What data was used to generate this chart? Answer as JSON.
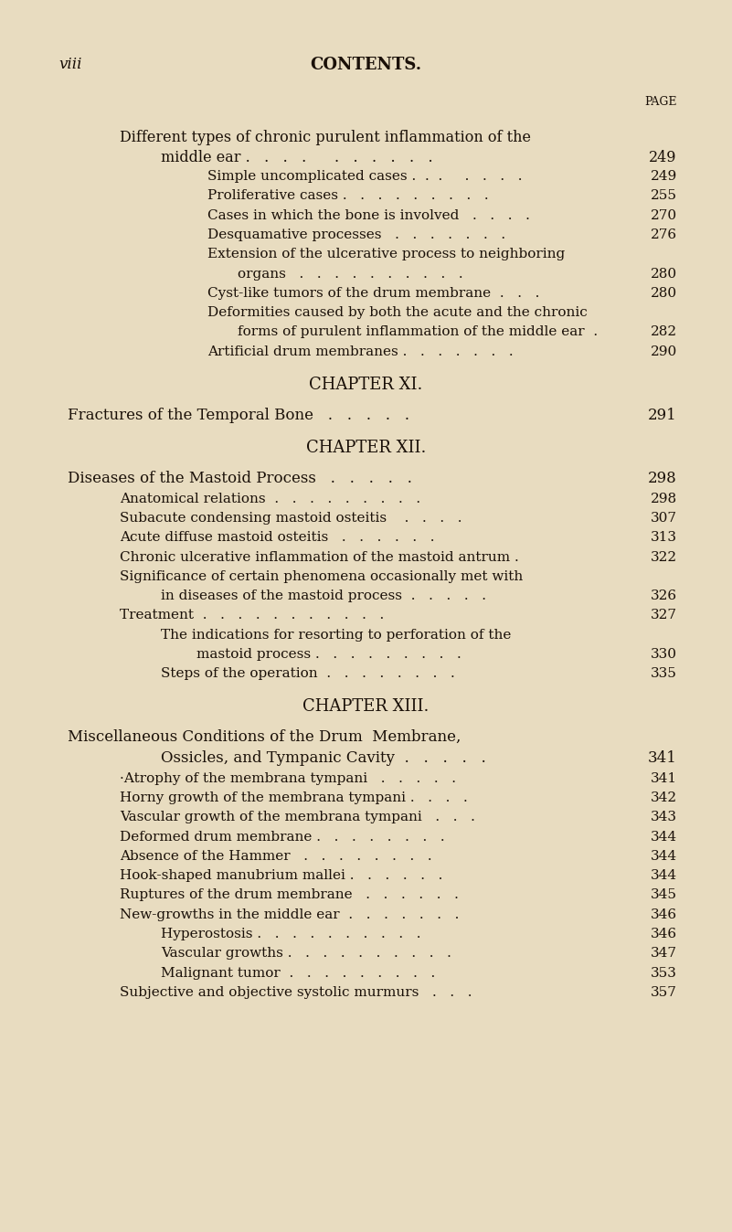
{
  "bg_color": "#e8dcc0",
  "text_color": "#1a1008",
  "page_header_left": "viii",
  "page_header_center": "CONTENTS.",
  "page_label": "PAGE",
  "figsize": [
    8.01,
    13.48
  ],
  "dpi": 100,
  "lines": [
    {
      "text": "Different types of chronic purulent inflammation of the",
      "indent": 0.13,
      "page": null,
      "style": "normal",
      "size": 11.5
    },
    {
      "text": "middle ear .   .   .   .      .   .   .   .   .   .",
      "indent": 0.2,
      "page": "249",
      "style": "normal",
      "size": 11.5
    },
    {
      "text": "Simple uncomplicated cases .  .  .     .   .   .   .",
      "indent": 0.28,
      "page": "249",
      "style": "normal",
      "size": 11.0
    },
    {
      "text": "Proliferative cases .   .   .   .   .   .   .   .   .",
      "indent": 0.28,
      "page": "255",
      "style": "normal",
      "size": 11.0
    },
    {
      "text": "Cases in which the bone is involved   .   .   .   .",
      "indent": 0.28,
      "page": "270",
      "style": "normal",
      "size": 11.0
    },
    {
      "text": "Desquamative processes   .   .   .   .   .   .   .",
      "indent": 0.28,
      "page": "276",
      "style": "normal",
      "size": 11.0
    },
    {
      "text": "Extension of the ulcerative process to neighboring",
      "indent": 0.28,
      "page": null,
      "style": "normal",
      "size": 11.0
    },
    {
      "text": "organs   .   .   .   .   .   .   .   .   .   .",
      "indent": 0.33,
      "page": "280",
      "style": "normal",
      "size": 11.0
    },
    {
      "text": "Cyst-like tumors of the drum membrane  .   .   .",
      "indent": 0.28,
      "page": "280",
      "style": "normal",
      "size": 11.0
    },
    {
      "text": "Deformities caused by both the acute and the chronic",
      "indent": 0.28,
      "page": null,
      "style": "normal",
      "size": 11.0
    },
    {
      "text": "forms of purulent inflammation of the middle ear  .",
      "indent": 0.33,
      "page": "282",
      "style": "normal",
      "size": 11.0
    },
    {
      "text": "Artificial drum membranes .   .   .   .   .   .   .",
      "indent": 0.28,
      "page": "290",
      "style": "normal",
      "size": 11.0
    },
    {
      "text": "",
      "indent": 0,
      "page": null,
      "style": "spacer",
      "size": 10
    },
    {
      "text": "CHAPTER XI.",
      "indent": 0.5,
      "page": null,
      "style": "chapter_title",
      "size": 13
    },
    {
      "text": "",
      "indent": 0,
      "page": null,
      "style": "spacer",
      "size": 7
    },
    {
      "text": "Fractures of the Temporal Bone   .   .   .   .   .",
      "indent": 0.04,
      "page": "291",
      "style": "sc",
      "size": 12
    },
    {
      "text": "",
      "indent": 0,
      "page": null,
      "style": "spacer",
      "size": 10
    },
    {
      "text": "CHAPTER XII.",
      "indent": 0.5,
      "page": null,
      "style": "chapter_title",
      "size": 13
    },
    {
      "text": "",
      "indent": 0,
      "page": null,
      "style": "spacer",
      "size": 7
    },
    {
      "text": "Diseases of the Mastoid Process   .   .   .   .   .",
      "indent": 0.04,
      "page": "298",
      "style": "sc",
      "size": 12
    },
    {
      "text": "Anatomical relations  .   .   .   .   .   .   .   .   .",
      "indent": 0.13,
      "page": "298",
      "style": "normal",
      "size": 11.0
    },
    {
      "text": "Subacute condensing mastoid osteitis    .   .   .   .",
      "indent": 0.13,
      "page": "307",
      "style": "normal",
      "size": 11.0
    },
    {
      "text": "Acute diffuse mastoid osteitis   .   .   .   .   .   .",
      "indent": 0.13,
      "page": "313",
      "style": "normal",
      "size": 11.0
    },
    {
      "text": "Chronic ulcerative inflammation of the mastoid antrum .",
      "indent": 0.13,
      "page": "322",
      "style": "normal",
      "size": 11.0
    },
    {
      "text": "Significance of certain phenomena occasionally met with",
      "indent": 0.13,
      "page": null,
      "style": "normal",
      "size": 11.0
    },
    {
      "text": "in diseases of the mastoid process  .   .   .   .   .",
      "indent": 0.2,
      "page": "326",
      "style": "normal",
      "size": 11.0
    },
    {
      "text": "Treatment  .   .   .   .   .   .   .   .   .   .   .",
      "indent": 0.13,
      "page": "327",
      "style": "normal",
      "size": 11.0
    },
    {
      "text": "The indications for resorting to perforation of the",
      "indent": 0.2,
      "page": null,
      "style": "normal",
      "size": 11.0
    },
    {
      "text": "mastoid process .   .   .   .   .   .   .   .   .",
      "indent": 0.26,
      "page": "330",
      "style": "normal",
      "size": 11.0
    },
    {
      "text": "Steps of the operation  .   .   .   .   .   .   .   .",
      "indent": 0.2,
      "page": "335",
      "style": "normal",
      "size": 11.0
    },
    {
      "text": "",
      "indent": 0,
      "page": null,
      "style": "spacer",
      "size": 10
    },
    {
      "text": "CHAPTER XIII.",
      "indent": 0.5,
      "page": null,
      "style": "chapter_title",
      "size": 13
    },
    {
      "text": "",
      "indent": 0,
      "page": null,
      "style": "spacer",
      "size": 7
    },
    {
      "text": "Miscellaneous Conditions of the Drum  Membrane,",
      "indent": 0.04,
      "page": null,
      "style": "sc",
      "size": 12
    },
    {
      "text": "Ossicles, and Tympanic Cavity  .   .   .   .   .",
      "indent": 0.2,
      "page": "341",
      "style": "sc_sub",
      "size": 12
    },
    {
      "text": "·Atrophy of the membrana tympani   .   .   .   .   .",
      "indent": 0.13,
      "page": "341",
      "style": "normal",
      "size": 11.0
    },
    {
      "text": "Horny growth of the membrana tympani .   .   .   .",
      "indent": 0.13,
      "page": "342",
      "style": "normal",
      "size": 11.0
    },
    {
      "text": "Vascular growth of the membrana tympani   .   .   .",
      "indent": 0.13,
      "page": "343",
      "style": "normal",
      "size": 11.0
    },
    {
      "text": "Deformed drum membrane .   .   .   .   .   .   .   .",
      "indent": 0.13,
      "page": "344",
      "style": "normal",
      "size": 11.0
    },
    {
      "text": "Absence of the Hammer   .   .   .   .   .   .   .   .",
      "indent": 0.13,
      "page": "344",
      "style": "normal",
      "size": 11.0
    },
    {
      "text": "Hook-shaped manubrium mallei .   .   .   .   .   .",
      "indent": 0.13,
      "page": "344",
      "style": "normal",
      "size": 11.0
    },
    {
      "text": "Ruptures of the drum membrane   .   .   .   .   .   .",
      "indent": 0.13,
      "page": "345",
      "style": "normal",
      "size": 11.0
    },
    {
      "text": "New-growths in the middle ear  .   .   .   .   .   .   .",
      "indent": 0.13,
      "page": "346",
      "style": "normal",
      "size": 11.0
    },
    {
      "text": "Hyperostosis .   .   .   .   .   .   .   .   .   .",
      "indent": 0.2,
      "page": "346",
      "style": "normal",
      "size": 11.0
    },
    {
      "text": "Vascular growths .   .   .   .   .   .   .   .   .   .",
      "indent": 0.2,
      "page": "347",
      "style": "normal",
      "size": 11.0
    },
    {
      "text": "Malignant tumor  .   .   .   .   .   .   .   .   .",
      "indent": 0.2,
      "page": "353",
      "style": "normal",
      "size": 11.0
    },
    {
      "text": "Subjective and objective systolic murmurs   .   .   .",
      "indent": 0.13,
      "page": "357",
      "style": "normal",
      "size": 11.0
    }
  ]
}
